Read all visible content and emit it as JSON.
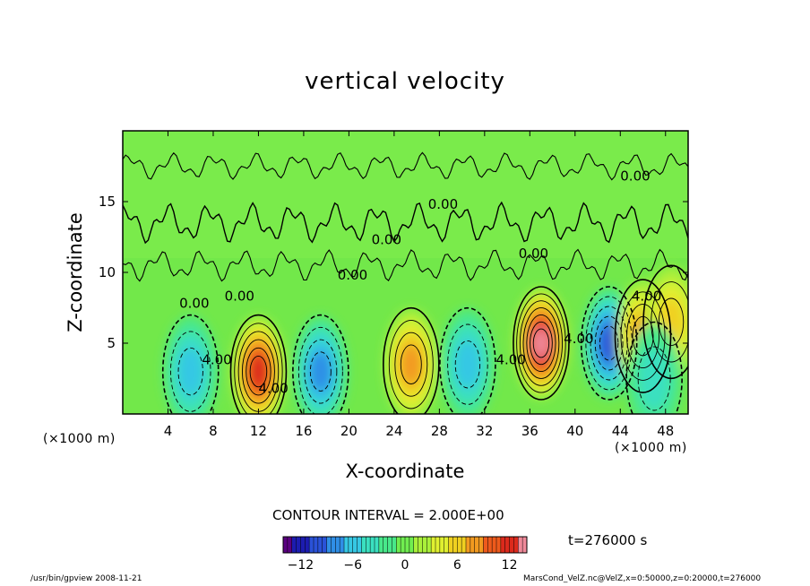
{
  "chart_data": {
    "type": "heatmap",
    "title": "vertical velocity",
    "xlabel": "X-coordinate",
    "ylabel": "Z-coordinate",
    "x_unit": "(×1000 m)",
    "z_unit": "(×1000 m)",
    "xlim": [
      0,
      50
    ],
    "ylim": [
      0,
      20
    ],
    "x_ticks": [
      "4",
      "8",
      "12",
      "16",
      "20",
      "24",
      "28",
      "32",
      "36",
      "40",
      "44",
      "48"
    ],
    "y_ticks": [
      "5",
      "10",
      "15"
    ],
    "contour_interval_text": "CONTOUR INTERVAL = 2.000E+00",
    "contour_labels": [
      "0.00",
      "0.00",
      "0.00",
      "0.00",
      "0.00",
      "0.00",
      "0.00",
      "4.00",
      "4.00",
      "4.00",
      "4.00",
      "4.00"
    ],
    "colorbar": {
      "range": [
        -14,
        14
      ],
      "ticks": [
        "−12",
        "−6",
        "0",
        "6",
        "12"
      ],
      "colors": [
        "#5a0080",
        "#1c1cb0",
        "#2a52d8",
        "#2f8ee6",
        "#36c8e4",
        "#3ae0c0",
        "#48e88a",
        "#70ee50",
        "#aaf03a",
        "#e0f030",
        "#f0d020",
        "#f29a20",
        "#ee5a1c",
        "#dc2a1c",
        "#f08a9a"
      ]
    },
    "features": [
      {
        "kind": "updraft",
        "x": 12,
        "z": 3.0,
        "value": 12
      },
      {
        "kind": "downdraft",
        "x": 17.5,
        "z": 3.0,
        "value": -8
      },
      {
        "kind": "updraft",
        "x": 25.5,
        "z": 3.5,
        "value": 8
      },
      {
        "kind": "downdraft",
        "x": 30.5,
        "z": 3.5,
        "value": -6
      },
      {
        "kind": "updraft",
        "x": 37,
        "z": 5.0,
        "value": 14
      },
      {
        "kind": "downdraft",
        "x": 43,
        "z": 5.0,
        "value": -10
      },
      {
        "kind": "downdraft",
        "x": 6,
        "z": 3.0,
        "value": -6
      },
      {
        "kind": "updraft",
        "x": 46,
        "z": 5.5,
        "value": 8
      },
      {
        "kind": "updraft",
        "x": 48.5,
        "z": 6.5,
        "value": 6
      },
      {
        "kind": "downdraft",
        "x": 47,
        "z": 2.5,
        "value": -4
      }
    ],
    "time_label": "t=276000 s"
  },
  "footer": {
    "left": "/usr/bin/gpview   2008-11-21",
    "right": "MarsCond_VelZ.nc@VelZ,x=0:50000,z=0:20000,t=276000"
  }
}
